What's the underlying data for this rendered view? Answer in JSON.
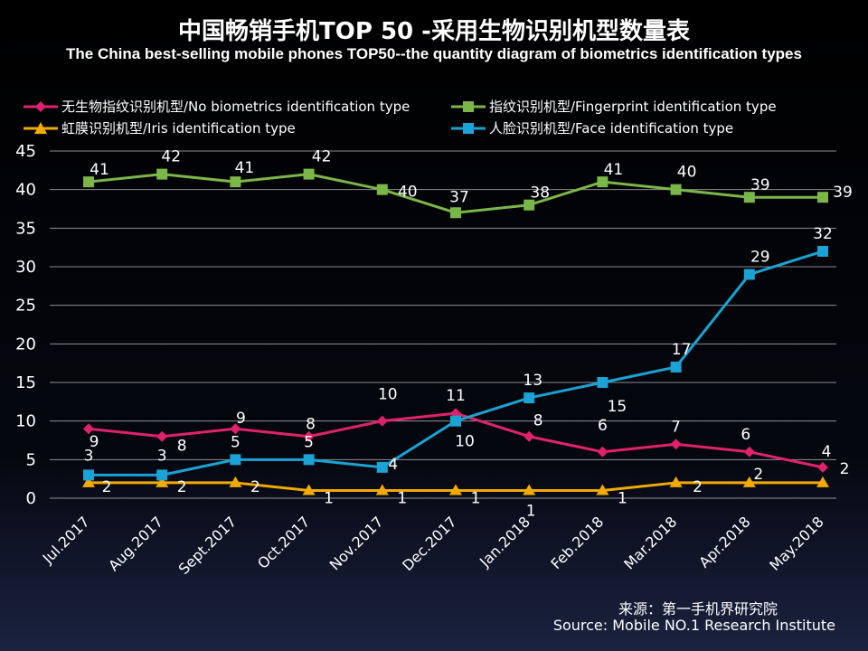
{
  "chart_data": {
    "type": "line",
    "title": "中国畅销手机TOP 50 -采用生物识别机型数量表",
    "subtitle": "The China best-selling mobile phones TOP50--the quantity diagram of biometrics identification types",
    "categories": [
      "Jul.2017",
      "Aug.2017",
      "Sept.2017",
      "Oct.2017",
      "Nov.2017",
      "Dec.2017",
      "Jan.2018",
      "Feb.2018",
      "Mar.2018",
      "Apr.2018",
      "May.2018"
    ],
    "ylim": [
      0,
      45
    ],
    "yticks": [
      "0",
      "5",
      "10",
      "15",
      "20",
      "25",
      "30",
      "35",
      "40",
      "45"
    ],
    "grid": true,
    "legend_position": "top",
    "series": [
      {
        "name": "无生物指纹识别机型/No biometrics identification type",
        "color": "#e0226e",
        "marker": "diamond",
        "values": [
          9,
          8,
          9,
          8,
          10,
          11,
          8,
          6,
          7,
          6,
          4
        ]
      },
      {
        "name": "指纹识别机型/Fingerprint identification type",
        "color": "#7ab648",
        "marker": "square",
        "values": [
          41,
          42,
          41,
          42,
          40,
          37,
          38,
          41,
          40,
          39,
          39
        ]
      },
      {
        "name": "虹膜识别机型/Iris identification type",
        "color": "#f2a900",
        "marker": "triangle",
        "values": [
          2,
          2,
          2,
          1,
          1,
          1,
          1,
          1,
          2,
          2,
          2
        ]
      },
      {
        "name": "人脸识别机型/Face identification type",
        "color": "#1aa3d4",
        "marker": "square",
        "values": [
          3,
          3,
          5,
          5,
          4,
          10,
          13,
          15,
          17,
          29,
          32
        ]
      }
    ]
  },
  "source": {
    "cn": "来源：第一手机界研究院",
    "en": "Source: Mobile NO.1 Research Institute"
  }
}
